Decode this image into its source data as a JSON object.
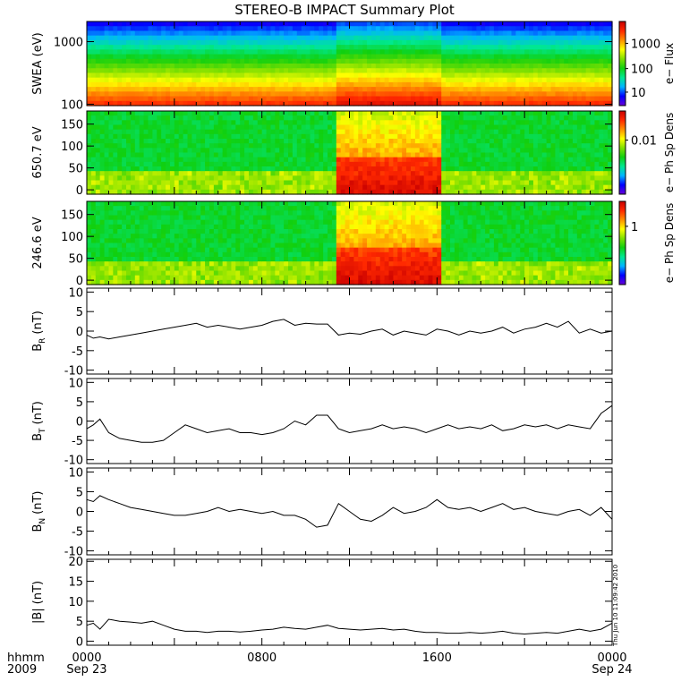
{
  "title": "STEREO-B IMPACT Summary Plot",
  "timestamp": "Thu Jun 10 11:09:42 2010",
  "time_axis": {
    "corner_labels": [
      "hhmm",
      "2009"
    ],
    "ticks": [
      {
        "hour": 0,
        "labels": [
          "0000",
          "Sep 23"
        ]
      },
      {
        "hour": 8,
        "labels": [
          "0800",
          ""
        ]
      },
      {
        "hour": 16,
        "labels": [
          "1600",
          ""
        ]
      },
      {
        "hour": 24,
        "labels": [
          "0000",
          "Sep 24"
        ]
      }
    ],
    "range_hours": [
      0,
      24
    ]
  },
  "colors": {
    "frame": "#000000",
    "line": "#000000",
    "colormap": [
      "#6a00d8",
      "#0000ff",
      "#00b4ff",
      "#00e890",
      "#10d010",
      "#80e000",
      "#ffff00",
      "#ff9000",
      "#ff2800",
      "#c80000"
    ]
  },
  "chart_data": [
    {
      "type": "heatmap",
      "ylabel": "SWEA (eV)",
      "y_scale": "log",
      "ylim": [
        95,
        2100
      ],
      "yticks": [
        100,
        1000
      ],
      "colorbar_label": "e− Flux",
      "colorbar_ticks": [
        "10",
        "100",
        "1000"
      ],
      "description_values": {
        "energy_profile_note": "flux decreases with energy; enhanced flux 11-16 h"
      }
    },
    {
      "type": "heatmap",
      "ylabel": "650.7 eV",
      "ylim": [
        -10,
        180
      ],
      "yticks": [
        0,
        50,
        100,
        150
      ],
      "colorbar_label": "e− Ph Sp Dens",
      "colorbar_ticks": [
        "0.01"
      ]
    },
    {
      "type": "heatmap",
      "ylabel": "246.6 eV",
      "ylim": [
        -10,
        180
      ],
      "yticks": [
        0,
        50,
        100,
        150
      ],
      "colorbar_label": "e− Ph Sp Dens",
      "colorbar_ticks": [
        "1"
      ]
    },
    {
      "type": "line",
      "ylabel": "B",
      "ylabel_sub": "R",
      "ylabel_unit": "(nT)",
      "ylim": [
        -11,
        11
      ],
      "yticks": [
        -10,
        -5,
        0,
        5,
        10
      ],
      "x": [
        0,
        0.3,
        0.6,
        1,
        1.5,
        2,
        2.5,
        3,
        3.5,
        4,
        4.5,
        5,
        5.5,
        6,
        6.5,
        7,
        7.5,
        8,
        8.5,
        9,
        9.5,
        10,
        10.5,
        11,
        11.5,
        12,
        12.5,
        13,
        13.5,
        14,
        14.5,
        15,
        15.5,
        16,
        16.5,
        17,
        17.5,
        18,
        18.5,
        19,
        19.5,
        20,
        20.5,
        21,
        21.5,
        22,
        22.5,
        23,
        23.5,
        24
      ],
      "y": [
        -1,
        -1.8,
        -1.5,
        -2,
        -1.5,
        -1,
        -0.5,
        0,
        0.5,
        1,
        1.5,
        2,
        1,
        1.5,
        1,
        0.5,
        1,
        1.5,
        2.5,
        3,
        1.5,
        2,
        1.8,
        1.8,
        -1,
        -0.5,
        -0.8,
        0,
        0.5,
        -1,
        0,
        -0.5,
        -1,
        0.5,
        0,
        -1,
        0,
        -0.5,
        0,
        1,
        -0.5,
        0.5,
        1,
        2,
        1,
        2.5,
        -0.5,
        0.5,
        -0.5,
        0
      ]
    },
    {
      "type": "line",
      "ylabel": "B",
      "ylabel_sub": "T",
      "ylabel_unit": "(nT)",
      "ylim": [
        -11,
        11
      ],
      "yticks": [
        -10,
        -5,
        0,
        5,
        10
      ],
      "x": [
        0,
        0.3,
        0.6,
        1,
        1.5,
        2,
        2.5,
        3,
        3.5,
        4,
        4.5,
        5,
        5.5,
        6,
        6.5,
        7,
        7.5,
        8,
        8.5,
        9,
        9.5,
        10,
        10.5,
        11,
        11.5,
        12,
        12.5,
        13,
        13.5,
        14,
        14.5,
        15,
        15.5,
        16,
        16.5,
        17,
        17.5,
        18,
        18.5,
        19,
        19.5,
        20,
        20.5,
        21,
        21.5,
        22,
        22.5,
        23,
        23.5,
        24
      ],
      "y": [
        -2,
        -1,
        0.5,
        -3,
        -4.5,
        -5,
        -5.5,
        -5.5,
        -5,
        -3,
        -1,
        -2,
        -3,
        -2.5,
        -2,
        -3,
        -3,
        -3.5,
        -3,
        -2,
        0,
        -1,
        1.5,
        1.5,
        -2,
        -3,
        -2.5,
        -2,
        -1,
        -2,
        -1.5,
        -2,
        -3,
        -2,
        -1,
        -2,
        -1.5,
        -2,
        -1,
        -2.5,
        -2,
        -1,
        -1.5,
        -1,
        -2,
        -1,
        -1.5,
        -2,
        2,
        4
      ]
    },
    {
      "type": "line",
      "ylabel": "B",
      "ylabel_sub": "N",
      "ylabel_unit": "(nT)",
      "ylim": [
        -11,
        11
      ],
      "yticks": [
        -10,
        -5,
        0,
        5,
        10
      ],
      "x": [
        0,
        0.3,
        0.6,
        1,
        1.5,
        2,
        2.5,
        3,
        3.5,
        4,
        4.5,
        5,
        5.5,
        6,
        6.5,
        7,
        7.5,
        8,
        8.5,
        9,
        9.5,
        10,
        10.5,
        11,
        11.5,
        12,
        12.5,
        13,
        13.5,
        14,
        14.5,
        15,
        15.5,
        16,
        16.5,
        17,
        17.5,
        18,
        18.5,
        19,
        19.5,
        20,
        20.5,
        21,
        21.5,
        22,
        22.5,
        23,
        23.5,
        24
      ],
      "y": [
        3,
        2.5,
        4,
        3,
        2,
        1,
        0.5,
        0,
        -0.5,
        -1,
        -1,
        -0.5,
        0,
        1,
        0,
        0.5,
        0,
        -0.5,
        0,
        -1,
        -1,
        -2,
        -4,
        -3.5,
        2,
        0,
        -2,
        -2.5,
        -1,
        1,
        -0.5,
        0,
        1,
        3,
        1,
        0.5,
        1,
        0,
        1,
        2,
        0.5,
        1,
        0,
        -0.5,
        -1,
        0,
        0.5,
        -1,
        1,
        -2
      ]
    },
    {
      "type": "line",
      "ylabel": "|B|",
      "ylabel_unit": "(nT)",
      "ylim": [
        -1,
        20.5
      ],
      "yticks": [
        0,
        5,
        10,
        15,
        20
      ],
      "x": [
        0,
        0.3,
        0.6,
        1,
        1.5,
        2,
        2.5,
        3,
        3.5,
        4,
        4.5,
        5,
        5.5,
        6,
        6.5,
        7,
        7.5,
        8,
        8.5,
        9,
        9.5,
        10,
        10.5,
        11,
        11.5,
        12,
        12.5,
        13,
        13.5,
        14,
        14.5,
        15,
        15.5,
        16,
        16.5,
        17,
        17.5,
        18,
        18.5,
        19,
        19.5,
        20,
        20.5,
        21,
        21.5,
        22,
        22.5,
        23,
        23.5,
        24
      ],
      "y": [
        4,
        4.5,
        3,
        5.5,
        5,
        4.8,
        4.5,
        5,
        4,
        3,
        2.5,
        2.5,
        2.2,
        2.5,
        2.5,
        2.3,
        2.5,
        2.8,
        3,
        3.5,
        3.2,
        3,
        3.5,
        4,
        3.2,
        3,
        2.8,
        3,
        3.2,
        2.8,
        3,
        2.5,
        2.2,
        2.2,
        2,
        2,
        2.2,
        2,
        2.2,
        2.5,
        2,
        1.8,
        2,
        2.2,
        2,
        2.5,
        3,
        2.5,
        3,
        4.5
      ]
    }
  ]
}
